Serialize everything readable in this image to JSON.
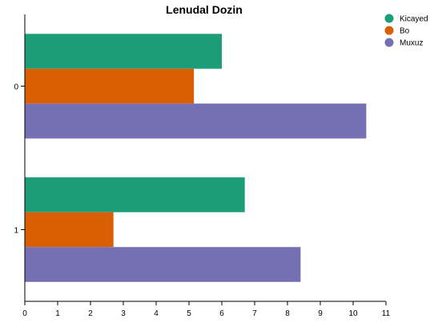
{
  "chart_data": {
    "type": "bar",
    "orientation": "horizontal",
    "title": "Lenudal Dozin",
    "xlabel": "",
    "ylabel": "",
    "categories": [
      "0",
      "1"
    ],
    "xlim": [
      0,
      11
    ],
    "x_ticks": [
      "0",
      "1",
      "2",
      "3",
      "4",
      "5",
      "6",
      "7",
      "8",
      "9",
      "10",
      "11"
    ],
    "grid": false,
    "legend_position": "top-right",
    "series": [
      {
        "name": "Kicayed",
        "color": "#1b9e77",
        "values": [
          6.0,
          6.7
        ]
      },
      {
        "name": "Bo",
        "color": "#d95f02",
        "values": [
          5.15,
          2.7
        ]
      },
      {
        "name": "Muxuz",
        "color": "#7570b3",
        "values": [
          10.4,
          8.4
        ]
      }
    ]
  }
}
